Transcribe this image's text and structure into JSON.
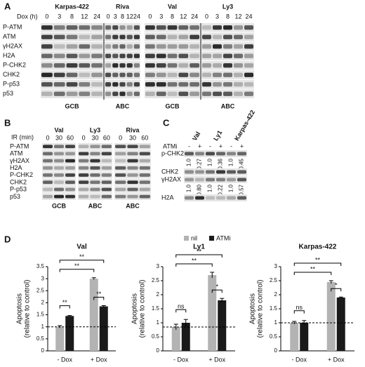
{
  "panel_a": {
    "label": "A",
    "time_label": "Dox (h)",
    "cell_lines": [
      "Karpas-422",
      "Riva",
      "Val",
      "Ly3"
    ],
    "timepoints": [
      "0",
      "3",
      "8",
      "12",
      "24"
    ],
    "rows": [
      "P-ATM",
      "ATM",
      "γH2AX",
      "H2A",
      "P-CHK2",
      "CHK2",
      "P-p53",
      "p53"
    ],
    "subtypes": [
      "GCB",
      "ABC",
      "GCB",
      "ABC"
    ]
  },
  "panel_b": {
    "label": "B",
    "time_label": "IR (min)",
    "cell_lines": [
      "Val",
      "Ly3",
      "Riva"
    ],
    "timepoints": [
      "0",
      "30",
      "60"
    ],
    "rows": [
      "P-ATM",
      "ATM",
      "γH2AX",
      "H2A",
      "P-CHK2",
      "CHK2",
      "P-p53",
      "p53"
    ],
    "subtypes": [
      "GCB",
      "ABC",
      "ABC"
    ]
  },
  "panel_c": {
    "label": "C",
    "cell_lines": [
      "Val",
      "Ly1",
      "Karpas-422"
    ],
    "treatment_label": "ATMi",
    "treatment_states": [
      "-",
      "+"
    ],
    "rows": [
      {
        "name": "p-CHK2",
        "quantification": [
          "1.0",
          "0.27",
          "1.0",
          "0.36",
          "1.0",
          "0.45"
        ]
      },
      {
        "name": "CHK2"
      },
      {
        "name": "γH2AX",
        "quantification": [
          "1.0",
          "0.80",
          "1.0",
          "0.22",
          "1.0",
          "0.57"
        ]
      },
      {
        "name": "H2A"
      }
    ]
  },
  "panel_d": {
    "label": "D"
  },
  "chart_data": [
    {
      "type": "bar",
      "title": "Val",
      "ylabel": [
        "Apoptosis",
        "(relative to control)"
      ],
      "categories": [
        "- Dox",
        "+ Dox"
      ],
      "series": [
        {
          "name": "nil",
          "color": "#b3b3b3",
          "values": [
            1.0,
            3.0
          ],
          "errors": [
            0.05,
            0.04
          ]
        },
        {
          "name": "ATMi",
          "color": "#1a1a1a",
          "values": [
            1.45,
            1.85
          ],
          "errors": [
            0.02,
            0.03
          ]
        }
      ],
      "ylim": [
        0,
        3.5
      ],
      "yticks": [
        0,
        0.5,
        1,
        1.5,
        2,
        2.5,
        3,
        3.5
      ],
      "reference_line": 1,
      "annotations": [
        "**",
        "**",
        "**",
        "**"
      ]
    },
    {
      "type": "bar",
      "title": "Ly1",
      "ylabel": [
        "Apoptosis",
        "(relative to control)"
      ],
      "categories": [
        "- Dox",
        "+ Dox"
      ],
      "series": [
        {
          "name": "nil",
          "color": "#b3b3b3",
          "values": [
            0.85,
            2.7
          ],
          "errors": [
            0.1,
            0.1
          ]
        },
        {
          "name": "ATMi",
          "color": "#1a1a1a",
          "values": [
            1.0,
            1.8
          ],
          "errors": [
            0.12,
            0.07
          ]
        }
      ],
      "ylim": [
        0,
        3
      ],
      "yticks": [
        0,
        0.5,
        1,
        1.5,
        2,
        2.5,
        3
      ],
      "reference_line": 0.85,
      "annotations": [
        "ns",
        "*",
        "**",
        "**"
      ]
    },
    {
      "type": "bar",
      "title": "Karpas-422",
      "ylabel": [
        "Apoptosis",
        "(relative to control)"
      ],
      "categories": [
        "- Dox",
        "+ Dox"
      ],
      "series": [
        {
          "name": "nil",
          "color": "#b3b3b3",
          "values": [
            1.0,
            2.45
          ],
          "errors": [
            0.05,
            0.05
          ]
        },
        {
          "name": "ATMi",
          "color": "#1a1a1a",
          "values": [
            1.0,
            1.9
          ],
          "errors": [
            0.08,
            0.02
          ]
        }
      ],
      "ylim": [
        0,
        3
      ],
      "yticks": [
        0,
        0.5,
        1,
        1.5,
        2,
        2.5,
        3
      ],
      "reference_line": 1,
      "annotations": [
        "ns",
        "*",
        "**",
        "**"
      ]
    }
  ]
}
